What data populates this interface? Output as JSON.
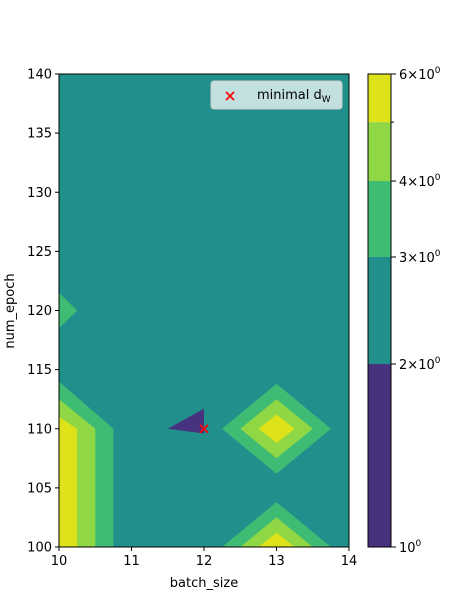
{
  "chart_data": {
    "type": "contourf",
    "title": "",
    "xlabel": "batch_size",
    "ylabel": "num_epoch",
    "xlim": [
      10,
      14
    ],
    "ylim": [
      100,
      140
    ],
    "xticks": [
      "10",
      "11",
      "12",
      "13",
      "14"
    ],
    "yticks": [
      "100",
      "105",
      "110",
      "115",
      "120",
      "125",
      "130",
      "135",
      "140"
    ],
    "grid": false,
    "legend": {
      "placement": "upper right",
      "entries": [
        {
          "marker": "x",
          "color": "#ff0000",
          "label_text": "minimal d",
          "label_sub": "W"
        }
      ]
    },
    "minimum_point": {
      "x": 12,
      "y": 110,
      "label": "minimal d_W"
    },
    "levels": [
      1,
      2,
      3,
      4,
      5,
      6
    ],
    "level_colors": [
      "#46327e",
      "#21908d",
      "#3fbc73",
      "#8fd744",
      "#dde318"
    ],
    "background_level_band": [
      2,
      3
    ],
    "regions": [
      {
        "band": [
          1,
          2
        ],
        "color": "#46327e",
        "polygon": [
          [
            11.5,
            110
          ],
          [
            12.0,
            111.7
          ],
          [
            12.0,
            109.6
          ]
        ]
      },
      {
        "band": [
          3,
          4
        ],
        "color": "#3fbc73",
        "polygon": [
          [
            10,
            118.5
          ],
          [
            10.25,
            120
          ],
          [
            10,
            121.5
          ]
        ]
      },
      {
        "band": [
          3,
          4
        ],
        "color": "#3fbc73",
        "polygon": [
          [
            10,
            114
          ],
          [
            10.75,
            110
          ],
          [
            10.75,
            100
          ],
          [
            10,
            100
          ]
        ]
      },
      {
        "band": [
          4,
          5
        ],
        "color": "#8fd744",
        "polygon": [
          [
            10,
            112.5
          ],
          [
            10.5,
            110
          ],
          [
            10.5,
            100
          ],
          [
            10,
            100
          ]
        ]
      },
      {
        "band": [
          5,
          6
        ],
        "color": "#dde318",
        "polygon": [
          [
            10,
            111
          ],
          [
            10.25,
            110
          ],
          [
            10.25,
            100
          ],
          [
            10,
            100
          ]
        ]
      },
      {
        "band": [
          3,
          4
        ],
        "color": "#3fbc73",
        "polygon": [
          [
            12.25,
            110
          ],
          [
            13,
            113.8
          ],
          [
            13.75,
            110
          ],
          [
            13,
            106.2
          ]
        ]
      },
      {
        "band": [
          4,
          5
        ],
        "color": "#8fd744",
        "polygon": [
          [
            12.5,
            110
          ],
          [
            13,
            112.5
          ],
          [
            13.5,
            110
          ],
          [
            13,
            107.5
          ]
        ]
      },
      {
        "band": [
          5,
          6
        ],
        "color": "#dde318",
        "polygon": [
          [
            12.75,
            110
          ],
          [
            13,
            111.2
          ],
          [
            13.25,
            110
          ],
          [
            13,
            108.8
          ]
        ]
      },
      {
        "band": [
          3,
          4
        ],
        "color": "#3fbc73",
        "polygon": [
          [
            12.25,
            100
          ],
          [
            13,
            103.8
          ],
          [
            13.75,
            100
          ]
        ]
      },
      {
        "band": [
          4,
          5
        ],
        "color": "#8fd744",
        "polygon": [
          [
            12.5,
            100
          ],
          [
            13,
            102.5
          ],
          [
            13.5,
            100
          ]
        ]
      },
      {
        "band": [
          5,
          6
        ],
        "color": "#dde318",
        "polygon": [
          [
            12.75,
            100
          ],
          [
            13,
            101.2
          ],
          [
            13.25,
            100
          ]
        ]
      }
    ],
    "colorbar": {
      "scale": "log",
      "range": [
        1,
        6
      ],
      "tick_labels": [
        {
          "value": 1,
          "base": "10",
          "exp": "0"
        },
        {
          "value": 2,
          "mant": "2",
          "base": "10",
          "exp": "0"
        },
        {
          "value": 3,
          "mant": "3",
          "base": "10",
          "exp": "0"
        },
        {
          "value": 4,
          "mant": "4",
          "base": "10",
          "exp": "0"
        },
        {
          "value": 6,
          "mant": "6",
          "base": "10",
          "exp": "0"
        }
      ],
      "minor_ticks": [
        5
      ]
    }
  }
}
